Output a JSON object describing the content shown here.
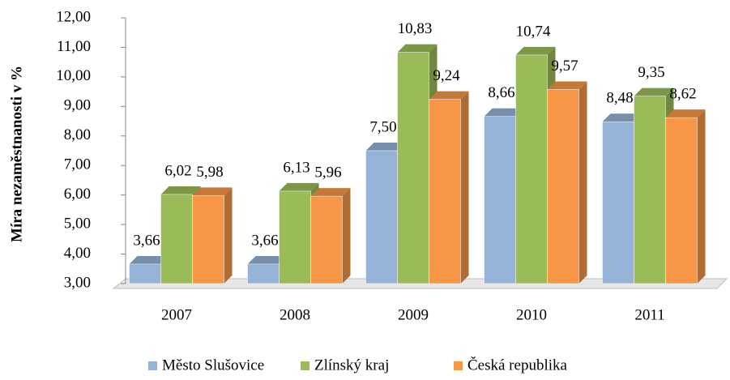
{
  "chart_data": {
    "type": "bar3d",
    "y_label": "Míra nezaměstnanosti v %",
    "categories": [
      "2007",
      "2008",
      "2009",
      "2010",
      "2011"
    ],
    "series": [
      {
        "name": "Město Slušovice",
        "color": "#95b3d7",
        "values": [
          3.66,
          3.66,
          7.5,
          8.66,
          8.48
        ],
        "value_labels": [
          "3,66",
          "3,66",
          "7,50",
          "8,66",
          "8,48"
        ]
      },
      {
        "name": "Zlínský kraj",
        "color": "#9bbb59",
        "values": [
          6.02,
          6.13,
          10.83,
          10.74,
          9.35
        ],
        "value_labels": [
          "6,02",
          "6,13",
          "10,83",
          "10,74",
          "9,35"
        ]
      },
      {
        "name": "Česká republika",
        "color": "#f79646",
        "values": [
          5.98,
          5.96,
          9.24,
          9.57,
          8.62
        ],
        "value_labels": [
          "5,98",
          "5,96",
          "9,24",
          "9,57",
          "8,62"
        ]
      }
    ],
    "ylim": [
      3,
      12
    ],
    "yticks": [
      {
        "value": 3,
        "label": "3,00"
      },
      {
        "value": 4,
        "label": "4,00"
      },
      {
        "value": 5,
        "label": "5,00"
      },
      {
        "value": 6,
        "label": "6,00"
      },
      {
        "value": 7,
        "label": "7,00"
      },
      {
        "value": 8,
        "label": "8,00"
      },
      {
        "value": 9,
        "label": "9,00"
      },
      {
        "value": 10,
        "label": "10,00"
      },
      {
        "value": 11,
        "label": "11,00"
      },
      {
        "value": 12,
        "label": "12,00"
      }
    ],
    "legend": "bottom"
  }
}
